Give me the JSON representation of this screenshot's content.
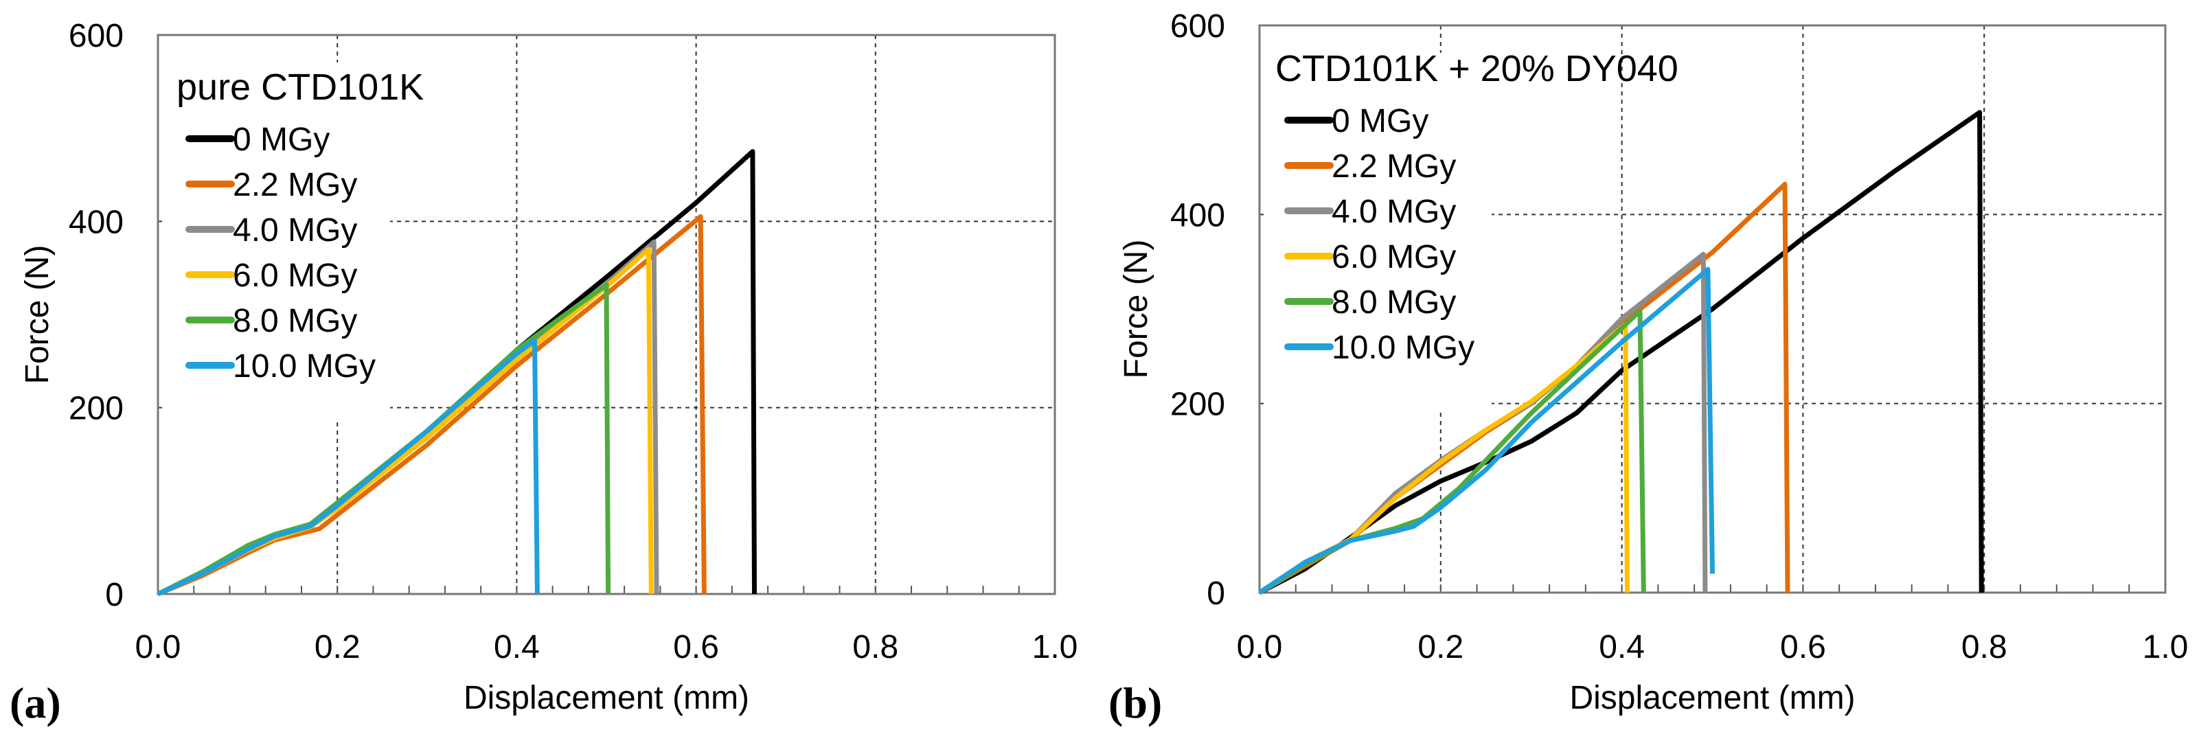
{
  "chart_data": [
    {
      "type": "line",
      "panel_label": "(a)",
      "title": "pure CTD101K",
      "xlabel": "Displacement (mm)",
      "ylabel": "Force (N)",
      "xlim": [
        0,
        1.0
      ],
      "ylim": [
        0,
        600
      ],
      "xticks": [
        "0.0",
        "0.2",
        "0.4",
        "0.6",
        "0.8",
        "1.0"
      ],
      "yticks": [
        "0",
        "200",
        "400",
        "600"
      ],
      "grid": true,
      "legend_position": "top-left",
      "series": [
        {
          "name": "0 MGy",
          "color": "#000000",
          "points": [
            [
              0,
              0
            ],
            [
              0.05,
              22
            ],
            [
              0.1,
              48
            ],
            [
              0.13,
              60
            ],
            [
              0.17,
              72
            ],
            [
              0.2,
              95
            ],
            [
              0.3,
              172
            ],
            [
              0.4,
              262
            ],
            [
              0.5,
              340
            ],
            [
              0.6,
              420
            ],
            [
              0.663,
              475
            ],
            [
              0.665,
              0
            ]
          ]
        },
        {
          "name": "2.2 MGy",
          "color": "#E36C0A",
          "points": [
            [
              0,
              0
            ],
            [
              0.05,
              20
            ],
            [
              0.1,
              44
            ],
            [
              0.13,
              58
            ],
            [
              0.18,
              70
            ],
            [
              0.2,
              85
            ],
            [
              0.3,
              160
            ],
            [
              0.4,
              245
            ],
            [
              0.5,
              322
            ],
            [
              0.605,
              405
            ],
            [
              0.609,
              0
            ]
          ]
        },
        {
          "name": "4.0 MGy",
          "color": "#8C8C8C",
          "points": [
            [
              0,
              0
            ],
            [
              0.05,
              22
            ],
            [
              0.1,
              47
            ],
            [
              0.13,
              60
            ],
            [
              0.17,
              72
            ],
            [
              0.2,
              92
            ],
            [
              0.3,
              170
            ],
            [
              0.4,
              256
            ],
            [
              0.5,
              333
            ],
            [
              0.553,
              378
            ],
            [
              0.556,
              0
            ]
          ]
        },
        {
          "name": "6.0 MGy",
          "color": "#FFC000",
          "points": [
            [
              0,
              0
            ],
            [
              0.05,
              22
            ],
            [
              0.1,
              47
            ],
            [
              0.13,
              60
            ],
            [
              0.17,
              72
            ],
            [
              0.2,
              92
            ],
            [
              0.3,
              168
            ],
            [
              0.4,
              252
            ],
            [
              0.5,
              330
            ],
            [
              0.547,
              370
            ],
            [
              0.55,
              0
            ]
          ]
        },
        {
          "name": "8.0 MGy",
          "color": "#4EAC3C",
          "points": [
            [
              0,
              0
            ],
            [
              0.05,
              24
            ],
            [
              0.1,
              52
            ],
            [
              0.13,
              64
            ],
            [
              0.17,
              75
            ],
            [
              0.2,
              98
            ],
            [
              0.3,
              175
            ],
            [
              0.4,
              262
            ],
            [
              0.5,
              332
            ],
            [
              0.502,
              0
            ]
          ]
        },
        {
          "name": "10.0 MGy",
          "color": "#1FA0DC",
          "points": [
            [
              0,
              0
            ],
            [
              0.05,
              22
            ],
            [
              0.1,
              48
            ],
            [
              0.13,
              62
            ],
            [
              0.17,
              73
            ],
            [
              0.2,
              95
            ],
            [
              0.3,
              175
            ],
            [
              0.4,
              258
            ],
            [
              0.42,
              272
            ],
            [
              0.423,
              0
            ]
          ]
        }
      ]
    },
    {
      "type": "line",
      "panel_label": "(b)",
      "title": "CTD101K + 20% DY040",
      "xlabel": "Displacement (mm)",
      "ylabel": "Force (N)",
      "xlim": [
        0,
        1.0
      ],
      "ylim": [
        0,
        600
      ],
      "xticks": [
        "0.0",
        "0.2",
        "0.4",
        "0.6",
        "0.8",
        "1.0"
      ],
      "yticks": [
        "0",
        "200",
        "400",
        "600"
      ],
      "grid": true,
      "legend_position": "top-left",
      "series": [
        {
          "name": "0 MGy",
          "color": "#000000",
          "points": [
            [
              0,
              0
            ],
            [
              0.05,
              25
            ],
            [
              0.1,
              58
            ],
            [
              0.15,
              92
            ],
            [
              0.2,
              118
            ],
            [
              0.25,
              138
            ],
            [
              0.3,
              160
            ],
            [
              0.35,
              190
            ],
            [
              0.4,
              235
            ],
            [
              0.5,
              300
            ],
            [
              0.6,
              375
            ],
            [
              0.7,
              445
            ],
            [
              0.795,
              508
            ],
            [
              0.797,
              0
            ]
          ]
        },
        {
          "name": "2.2 MGy",
          "color": "#E36C0A",
          "points": [
            [
              0,
              0
            ],
            [
              0.05,
              28
            ],
            [
              0.1,
              55
            ],
            [
              0.15,
              100
            ],
            [
              0.2,
              135
            ],
            [
              0.25,
              170
            ],
            [
              0.3,
              200
            ],
            [
              0.35,
              240
            ],
            [
              0.4,
              285
            ],
            [
              0.5,
              360
            ],
            [
              0.58,
              432
            ],
            [
              0.583,
              0
            ]
          ]
        },
        {
          "name": "4.0 MGy",
          "color": "#8C8C8C",
          "points": [
            [
              0,
              0
            ],
            [
              0.05,
              30
            ],
            [
              0.1,
              56
            ],
            [
              0.15,
              105
            ],
            [
              0.2,
              140
            ],
            [
              0.25,
              172
            ],
            [
              0.3,
              200
            ],
            [
              0.35,
              240
            ],
            [
              0.4,
              290
            ],
            [
              0.49,
              358
            ],
            [
              0.492,
              0
            ]
          ]
        },
        {
          "name": "6.0 MGy",
          "color": "#FFC000",
          "points": [
            [
              0,
              0
            ],
            [
              0.05,
              32
            ],
            [
              0.1,
              56
            ],
            [
              0.15,
              100
            ],
            [
              0.2,
              138
            ],
            [
              0.25,
              172
            ],
            [
              0.3,
              202
            ],
            [
              0.35,
              240
            ],
            [
              0.404,
              284
            ],
            [
              0.406,
              0
            ]
          ]
        },
        {
          "name": "8.0 MGy",
          "color": "#4EAC3C",
          "points": [
            [
              0,
              0
            ],
            [
              0.05,
              30
            ],
            [
              0.1,
              55
            ],
            [
              0.15,
              68
            ],
            [
              0.18,
              78
            ],
            [
              0.22,
              110
            ],
            [
              0.3,
              190
            ],
            [
              0.35,
              235
            ],
            [
              0.42,
              298
            ],
            [
              0.424,
              0
            ]
          ]
        },
        {
          "name": "10.0 MGy",
          "color": "#1FA0DC",
          "points": [
            [
              0,
              0
            ],
            [
              0.05,
              32
            ],
            [
              0.1,
              55
            ],
            [
              0.15,
              65
            ],
            [
              0.17,
              70
            ],
            [
              0.2,
              90
            ],
            [
              0.25,
              130
            ],
            [
              0.3,
              180
            ],
            [
              0.4,
              265
            ],
            [
              0.495,
              342
            ],
            [
              0.5,
              20
            ]
          ]
        }
      ]
    }
  ]
}
